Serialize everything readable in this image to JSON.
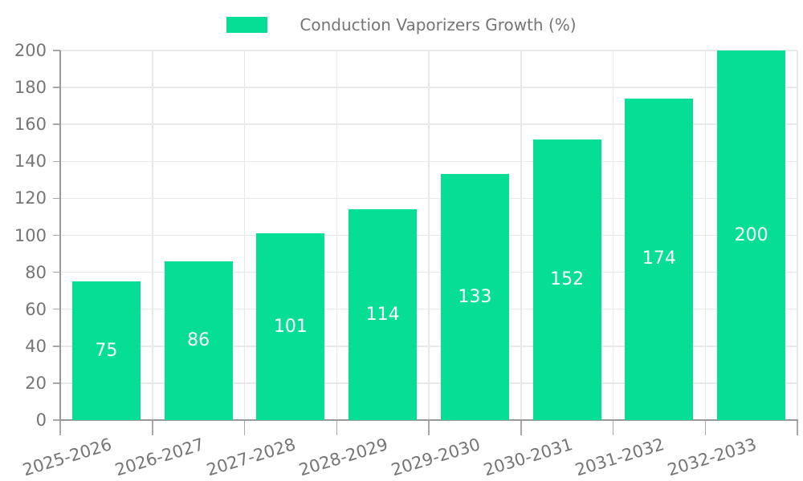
{
  "chart_data": {
    "type": "bar",
    "title": "Conduction Vaporizers Growth (%)",
    "legend": [
      "Conduction Vaporizers Growth (%)"
    ],
    "legend_position": "top-center",
    "categories": [
      "2025-2026",
      "2026-2027",
      "2027-2028",
      "2028-2029",
      "2029-2030",
      "2030-2031",
      "2031-2032",
      "2032-2033"
    ],
    "series": [
      {
        "name": "Conduction Vaporizers Growth (%)",
        "values": [
          75,
          86,
          101,
          114,
          133,
          152,
          174,
          200
        ]
      }
    ],
    "bar_value_labels": [
      75,
      86,
      101,
      114,
      133,
      152,
      174,
      200
    ],
    "xlabel": "",
    "ylabel": "",
    "ylim": [
      0,
      200
    ],
    "ytick_step": 20,
    "yticks": [
      0,
      20,
      40,
      60,
      80,
      100,
      120,
      140,
      160,
      180,
      200
    ],
    "grid": true,
    "x_label_rotation_deg": -17,
    "colors": {
      "bar": "#06DE96",
      "bar_label": "#FFFFFF",
      "axis_line": "#999999",
      "tick_mark": "#A8A8A8",
      "gridline": "#E8E8E8",
      "tick_text": "#757575",
      "legend_text": "#757575",
      "background": "#FFFFFF"
    }
  }
}
